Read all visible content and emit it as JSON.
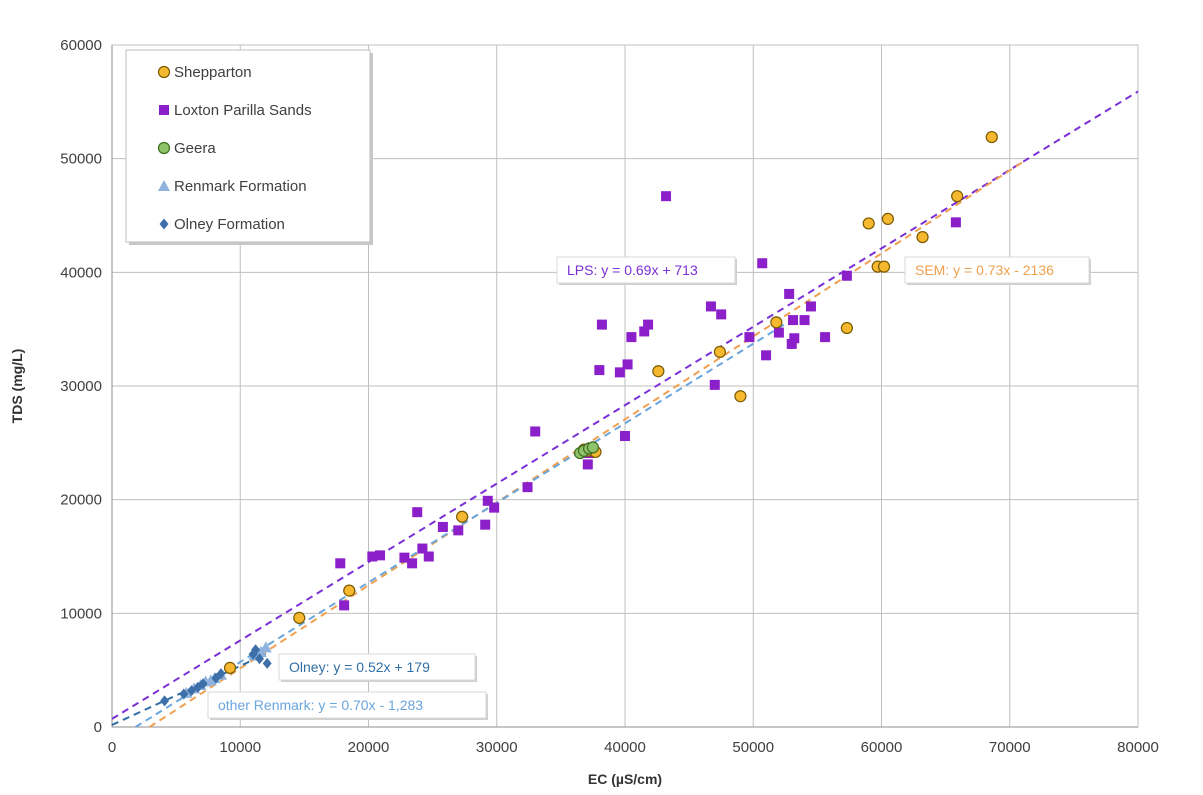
{
  "chart_data": {
    "type": "scatter",
    "xlabel": "EC (µS/cm)",
    "ylabel": "TDS (mg/L)",
    "xlim": [
      0,
      80000
    ],
    "ylim": [
      0,
      60000
    ],
    "x_ticks": [
      "0",
      "10000",
      "20000",
      "30000",
      "40000",
      "50000",
      "60000",
      "70000",
      "80000"
    ],
    "y_ticks": [
      "0",
      "10000",
      "20000",
      "30000",
      "40000",
      "50000",
      "60000"
    ],
    "grid": true,
    "legend_position": "top-left",
    "series": [
      {
        "name": "Shepparton",
        "marker": "circle",
        "color": "#f5b82e",
        "stroke": "#7a5a00",
        "points": [
          [
            9200,
            5200
          ],
          [
            14600,
            9600
          ],
          [
            18500,
            12000
          ],
          [
            27300,
            18500
          ],
          [
            36800,
            24400
          ],
          [
            37100,
            24300
          ],
          [
            37700,
            24200
          ],
          [
            42600,
            31300
          ],
          [
            47400,
            33000
          ],
          [
            49000,
            29100
          ],
          [
            51800,
            35600
          ],
          [
            57300,
            35100
          ],
          [
            59000,
            44300
          ],
          [
            59700,
            40500
          ],
          [
            60200,
            40500
          ],
          [
            60500,
            44700
          ],
          [
            63200,
            43100
          ],
          [
            65900,
            46700
          ],
          [
            68600,
            51900
          ]
        ]
      },
      {
        "name": "Loxton Parilla Sands",
        "marker": "square",
        "color": "#8b1fc9",
        "points": [
          [
            17800,
            14400
          ],
          [
            18100,
            10700
          ],
          [
            20300,
            15000
          ],
          [
            20900,
            15100
          ],
          [
            22800,
            14900
          ],
          [
            23400,
            14400
          ],
          [
            23800,
            18900
          ],
          [
            24200,
            15700
          ],
          [
            24700,
            15000
          ],
          [
            25800,
            17600
          ],
          [
            27000,
            17300
          ],
          [
            29100,
            17800
          ],
          [
            29300,
            19900
          ],
          [
            29800,
            19300
          ],
          [
            32400,
            21100
          ],
          [
            33000,
            26000
          ],
          [
            37100,
            23100
          ],
          [
            37200,
            24100
          ],
          [
            38000,
            31400
          ],
          [
            38200,
            35400
          ],
          [
            39600,
            31200
          ],
          [
            40000,
            25600
          ],
          [
            40200,
            31900
          ],
          [
            40500,
            34300
          ],
          [
            41500,
            34800
          ],
          [
            41800,
            35400
          ],
          [
            43200,
            46700
          ],
          [
            46700,
            37000
          ],
          [
            47000,
            30100
          ],
          [
            47500,
            36300
          ],
          [
            49700,
            34300
          ],
          [
            50700,
            40800
          ],
          [
            51000,
            32700
          ],
          [
            52000,
            34700
          ],
          [
            52800,
            38100
          ],
          [
            53000,
            33700
          ],
          [
            53100,
            35800
          ],
          [
            53200,
            34200
          ],
          [
            54000,
            35800
          ],
          [
            54500,
            37000
          ],
          [
            55600,
            34300
          ],
          [
            57300,
            39700
          ],
          [
            65800,
            44400
          ]
        ]
      },
      {
        "name": "Geera",
        "marker": "circle",
        "color": "#8fc36a",
        "stroke": "#3e6b20",
        "points": [
          [
            36500,
            24100
          ],
          [
            36800,
            24300
          ],
          [
            37200,
            24500
          ],
          [
            37500,
            24600
          ]
        ]
      },
      {
        "name": "Renmark Formation",
        "marker": "triangle",
        "color": "#8fb3de",
        "points": [
          [
            5800,
            3000
          ],
          [
            6400,
            3400
          ],
          [
            6900,
            3700
          ],
          [
            7300,
            4000
          ],
          [
            7700,
            4100
          ],
          [
            8000,
            4300
          ],
          [
            8500,
            4600
          ],
          [
            11100,
            6300
          ],
          [
            11600,
            6600
          ],
          [
            12000,
            7000
          ]
        ]
      },
      {
        "name": "Olney Formation",
        "marker": "diamond",
        "color": "#3d6fa8",
        "points": [
          [
            4100,
            2300
          ],
          [
            5600,
            2900
          ],
          [
            6200,
            3200
          ],
          [
            6700,
            3500
          ],
          [
            7100,
            3800
          ],
          [
            8100,
            4300
          ],
          [
            8500,
            4700
          ],
          [
            9300,
            5100
          ],
          [
            11000,
            6400
          ],
          [
            11200,
            6800
          ],
          [
            11500,
            6000
          ],
          [
            12100,
            5600
          ]
        ]
      }
    ],
    "trendlines": [
      {
        "label": "LPS: y = 0.69x + 713",
        "color": "#7b2fd6",
        "x": [
          0,
          80000
        ],
        "y": [
          713,
          55913
        ]
      },
      {
        "label": "SEM: y = 0.73x - 2136",
        "color": "#f0a050",
        "x": [
          2926,
          71000
        ],
        "y": [
          0,
          49694
        ]
      },
      {
        "label": "Olney: y = 0.52x + 179",
        "color": "#2f6fa5",
        "x": [
          0,
          12000
        ],
        "y": [
          179,
          6419
        ]
      },
      {
        "label": "other Renmark: y = 0.70x - 1,283",
        "color": "#6aa5dd",
        "x": [
          1833,
          52500
        ],
        "y": [
          0,
          35467
        ]
      }
    ]
  }
}
